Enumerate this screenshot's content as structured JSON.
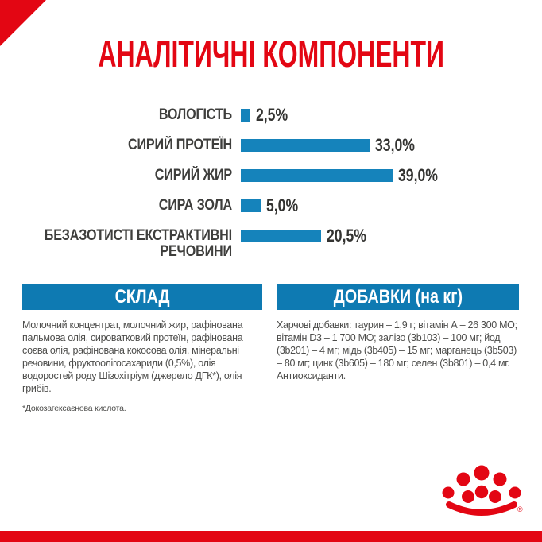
{
  "page": {
    "title": "АНАЛІТИЧНІ КОМПОНЕНТИ"
  },
  "colors": {
    "brand_red": "#e30613",
    "header_blue": "#0e7ab2",
    "bar_blue": "#1583bb",
    "text_gray": "#4d4d4b"
  },
  "chart_data": {
    "type": "bar",
    "orientation": "horizontal",
    "title": "АНАЛІТИЧНІ КОМПОНЕНТИ",
    "unit": "%",
    "categories": [
      "ВОЛОГІСТЬ",
      "СИРИЙ ПРОТЕЇН",
      "СИРИЙ ЖИР",
      "СИРА ЗОЛА",
      "БЕЗАЗОТИСТІ ЕКСТРАКТИВНІ РЕЧОВИНИ"
    ],
    "categories_display": [
      "ВОЛОГІСТЬ",
      "СИРИЙ ПРОТЕЇН",
      "СИРИЙ ЖИР",
      "СИРА ЗОЛА",
      "БЕЗАЗОТИСТІ ЕКСТРАКТИВНІ\nРЕЧОВИНИ"
    ],
    "values": [
      2.5,
      33.0,
      39.0,
      5.0,
      20.5
    ],
    "value_labels": [
      "2,5%",
      "33,0%",
      "39,0%",
      "5,0%",
      "20,5%"
    ],
    "xlim": [
      0,
      42
    ],
    "grid": false,
    "legend": false,
    "bar_color": "#1583bb",
    "label_position": "right-of-bar"
  },
  "sections": {
    "composition": {
      "header": "СКЛАД",
      "body": "Молочний концентрат, молочний жир, рафінована пальмова олія, сироватковий протеїн, рафінована соєва олія, рафінована кокосова олія, мінеральні речовини, фруктоолігосахариди (0,5%), олія водоростей роду Шізохітріум (джерело ДГК*), олія грибів.",
      "footnote": "*Докозагексаєнова кислота."
    },
    "additives": {
      "header": "ДОБАВКИ (на кг)",
      "body": "Харчові добавки: таурин – 1,9 г; вітамін А – 26 300 МО; вітамін D3 – 1 700 МО; залізо (3b103) – 100 мг; йод (3b201) – 4 мг; мідь (3b405) – 15 мг; марганець (3b503) – 80 мг; цинк (3b605) – 180 мг; селен (3b801) – 0,4 мг. Антиоксиданти."
    }
  },
  "footer": {
    "logo_name": "royal-canin-crown",
    "registered_mark": "®"
  }
}
